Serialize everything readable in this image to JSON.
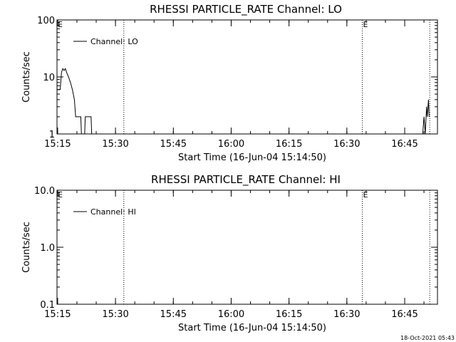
{
  "chart_data": [
    {
      "type": "line",
      "title": "RHESSI PARTICLE_RATE Channel: LO",
      "xlabel": "Start Time (16-Jun-04 15:14:50)",
      "ylabel": "Counts/sec",
      "yscale": "log",
      "ylim": [
        1,
        100
      ],
      "yticks": [
        "1",
        "10",
        "100"
      ],
      "xlim": [
        "15:14:50",
        "16:53:30"
      ],
      "xticks": [
        "15:15",
        "15:30",
        "15:45",
        "16:00",
        "16:15",
        "16:30",
        "16:45"
      ],
      "legend": {
        "placement": "top-left",
        "entries": [
          "Channel: LO"
        ]
      },
      "markers": [
        {
          "x": "15:14:50",
          "label": "E"
        },
        {
          "x": "15:32:10",
          "label": ""
        },
        {
          "x": "16:34:00",
          "label": "E"
        },
        {
          "x": "16:51:30",
          "label": ""
        }
      ],
      "series": [
        {
          "name": "Channel: LO",
          "points": [
            [
              "15:14:50",
              6
            ],
            [
              "15:15:40",
              6
            ],
            [
              "15:16:00",
              12
            ],
            [
              "15:16:20",
              14
            ],
            [
              "15:16:40",
              13
            ],
            [
              "15:17:00",
              14
            ],
            [
              "15:17:20",
              12
            ],
            [
              "15:17:50",
              10
            ],
            [
              "15:18:20",
              8
            ],
            [
              "15:18:50",
              6
            ],
            [
              "15:19:20",
              4
            ],
            [
              "15:19:40",
              2
            ],
            [
              "15:21:00",
              2
            ],
            [
              "15:21:10",
              1
            ],
            [
              "15:22:00",
              1
            ],
            [
              "15:22:10",
              2
            ],
            [
              "15:23:40",
              2
            ],
            [
              "15:23:50",
              1
            ]
          ],
          "late_points": [
            [
              "16:49:40",
              1
            ],
            [
              "16:50:00",
              2
            ],
            [
              "16:50:20",
              1
            ],
            [
              "16:50:40",
              3
            ],
            [
              "16:50:50",
              2
            ],
            [
              "16:51:10",
              4
            ],
            [
              "16:51:20",
              2
            ]
          ]
        }
      ]
    },
    {
      "type": "line",
      "title": "RHESSI PARTICLE_RATE Channel: HI",
      "xlabel": "Start Time (16-Jun-04 15:14:50)",
      "ylabel": "Counts/sec",
      "yscale": "log",
      "ylim": [
        0.1,
        10
      ],
      "yticks": [
        "0.1",
        "1.0",
        "10.0"
      ],
      "xlim": [
        "15:14:50",
        "16:53:30"
      ],
      "xticks": [
        "15:15",
        "15:30",
        "15:45",
        "16:00",
        "16:15",
        "16:30",
        "16:45"
      ],
      "legend": {
        "placement": "top-left",
        "entries": [
          "Channel: HI"
        ]
      },
      "markers": [
        {
          "x": "15:14:50",
          "label": "E"
        },
        {
          "x": "15:32:10",
          "label": ""
        },
        {
          "x": "16:34:00",
          "label": "E"
        },
        {
          "x": "16:51:30",
          "label": ""
        }
      ],
      "series": [
        {
          "name": "Channel: HI",
          "points": []
        }
      ]
    }
  ],
  "footer": {
    "timestamp": "18-Oct-2021 05:43"
  }
}
